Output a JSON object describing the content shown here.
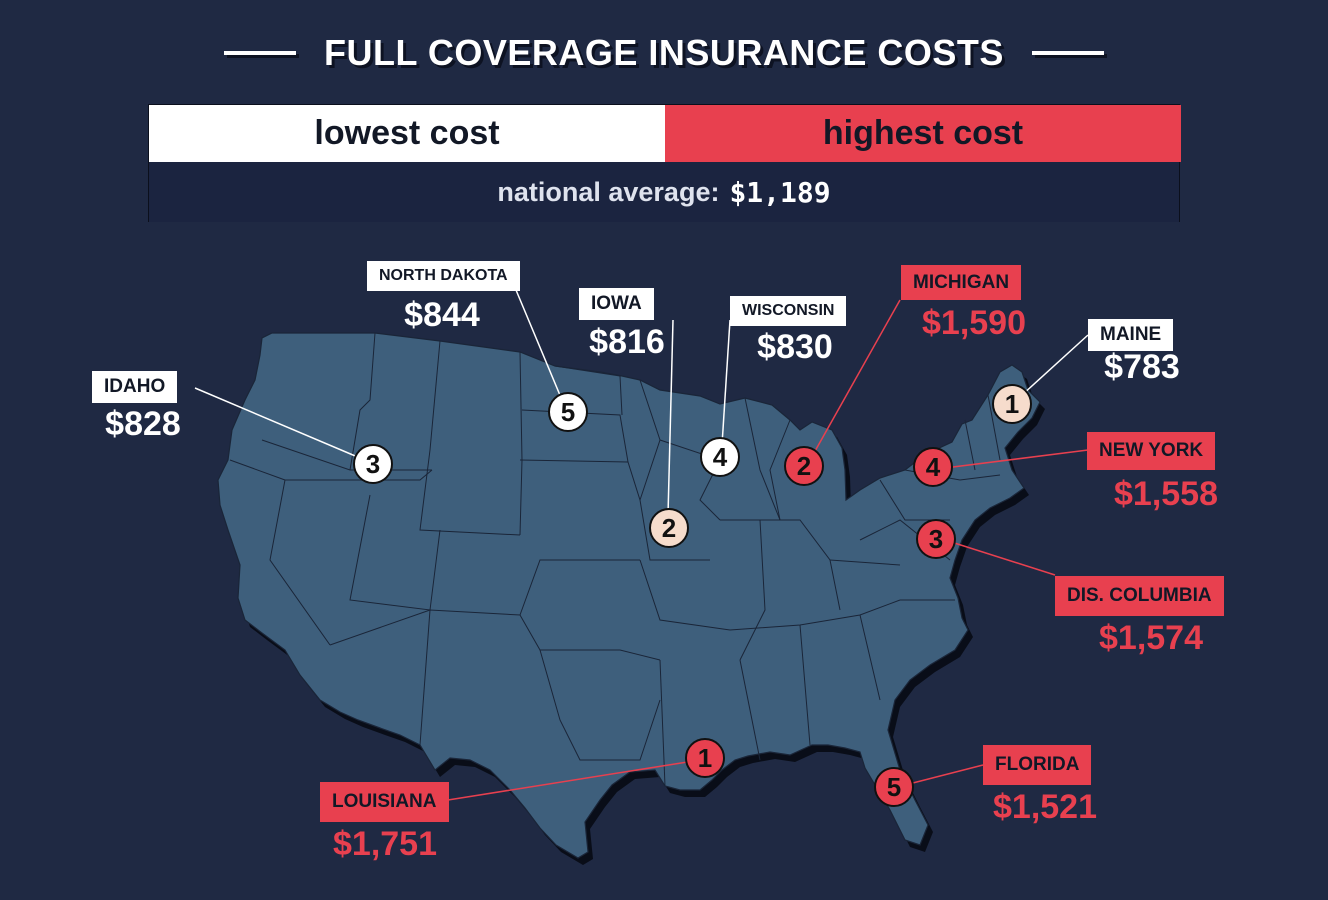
{
  "title": "FULL COVERAGE INSURANCE COSTS",
  "legend": {
    "lowest_label": "lowest cost",
    "highest_label": "highest cost",
    "average_label": "national average:",
    "average_value": "$1,189"
  },
  "colors": {
    "background": "#1f2943",
    "map_fill": "#3e5f7c",
    "lowest": "#ffffff",
    "highest": "#e8404f"
  },
  "states": [
    {
      "key": "idaho",
      "name": "IDAHO",
      "cost": "$828",
      "rank": "3",
      "group": "lowest"
    },
    {
      "key": "north-dakota",
      "name": "NORTH DAKOTA",
      "cost": "$844",
      "rank": "5",
      "group": "lowest"
    },
    {
      "key": "iowa",
      "name": "IOWA",
      "cost": "$816",
      "rank": "2",
      "group": "lowest"
    },
    {
      "key": "wisconsin",
      "name": "WISCONSIN",
      "cost": "$830",
      "rank": "4",
      "group": "lowest"
    },
    {
      "key": "maine",
      "name": "MAINE",
      "cost": "$783",
      "rank": "1",
      "group": "lowest"
    },
    {
      "key": "michigan",
      "name": "MICHIGAN",
      "cost": "$1,590",
      "rank": "2",
      "group": "highest"
    },
    {
      "key": "new-york",
      "name": "NEW YORK",
      "cost": "$1,558",
      "rank": "4",
      "group": "highest"
    },
    {
      "key": "dis-columbia",
      "name": "DIS. COLUMBIA",
      "cost": "$1,574",
      "rank": "3",
      "group": "highest"
    },
    {
      "key": "louisiana",
      "name": "LOUISIANA",
      "cost": "$1,751",
      "rank": "1",
      "group": "highest"
    },
    {
      "key": "florida",
      "name": "FLORIDA",
      "cost": "$1,521",
      "rank": "5",
      "group": "highest"
    }
  ]
}
